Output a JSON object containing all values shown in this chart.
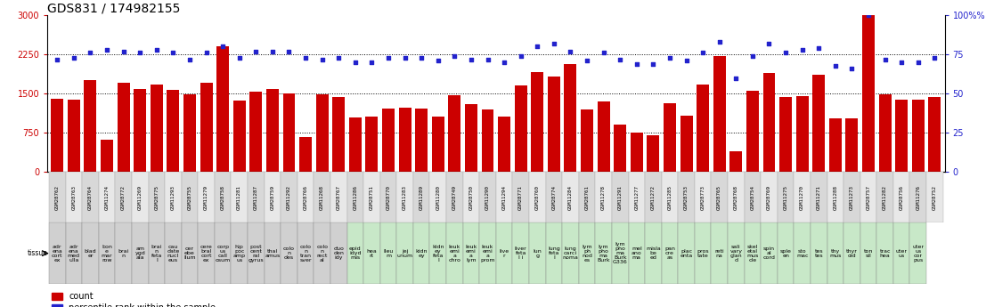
{
  "title": "GDS831 / 174982155",
  "gsm_labels": [
    "GSM28762",
    "GSM28763",
    "GSM28764",
    "GSM11274",
    "GSM28772",
    "GSM11269",
    "GSM28775",
    "GSM11293",
    "GSM28755",
    "GSM11279",
    "GSM28758",
    "GSM11281",
    "GSM11287",
    "GSM28759",
    "GSM11292",
    "GSM28766",
    "GSM11268",
    "GSM28767",
    "GSM11286",
    "GSM28751",
    "GSM28770",
    "GSM11283",
    "GSM11289",
    "GSM11280",
    "GSM28749",
    "GSM28750",
    "GSM11290",
    "GSM11294",
    "GSM28771",
    "GSM28760",
    "GSM28774",
    "GSM11284",
    "GSM28761",
    "GSM11278",
    "GSM11291",
    "GSM11277",
    "GSM11272",
    "GSM11285",
    "GSM28753",
    "GSM28773",
    "GSM28765",
    "GSM28768",
    "GSM28754",
    "GSM28769",
    "GSM11275",
    "GSM11270",
    "GSM11271",
    "GSM11288",
    "GSM11273",
    "GSM28757",
    "GSM11282",
    "GSM28756",
    "GSM11276",
    "GSM28752"
  ],
  "tissue_labels": [
    "adr\nena\ncort\nex",
    "adr\nena\nmed\nulla",
    "blad\ner",
    "bon\ne\nmar\nrow",
    "brai\nn",
    "am\nygd\nala",
    "brai\nn\nfeta\nl",
    "cau\ndate\nnucl\neus",
    "cer\nebe\nllum",
    "cere\nbral\ncort\nex",
    "corp\nus\ncall\nosum",
    "hip\npoc\namp\nus",
    "post\ncent\nral\ngyrus",
    "thal\namus",
    "colo\nn\ndes",
    "colo\nn\ntran\nsver",
    "colo\nn\nrect\nal",
    "duo\nden\nidy",
    "epid\nidyd\nmis",
    "hea\nrt",
    "lleu\nm",
    "jej\nunum",
    "kidn\ney",
    "kidn\ney\nfeta\nl",
    "leuk\nemi\na\nchro",
    "leuk\nemi\na\nlym",
    "leuk\nemi\na\nprom",
    "live\nr",
    "liver\nfeta\nl i",
    "lun\ng",
    "lung\nfeta\nl",
    "lung\ncarci\nnoma",
    "lym\nph\nnod\nes",
    "lym\npho\nma\nBurk",
    "lym\npho\nma\nBurk\nG336",
    "mel\nano\nma",
    "misla\nbe\ned",
    "pan\ncre\nas",
    "plac\nenta",
    "pros\ntate",
    "reti\nna",
    "sali\nvary\nglan\nd",
    "skel\netal\nmus\ncle",
    "spin\nal\ncord",
    "sple\nen",
    "sto\nmac",
    "tes\ntes",
    "thy\nmus",
    "thyr\noid",
    "ton\nsil",
    "trac\nhea",
    "uter\nus",
    "uter\nus\ncor\npus"
  ],
  "tissue_box_colors": [
    "#d0d0d0",
    "#d0d0d0",
    "#d0d0d0",
    "#d0d0d0",
    "#d0d0d0",
    "#d0d0d0",
    "#d0d0d0",
    "#d0d0d0",
    "#d0d0d0",
    "#d0d0d0",
    "#d0d0d0",
    "#d0d0d0",
    "#d0d0d0",
    "#d0d0d0",
    "#d0d0d0",
    "#d0d0d0",
    "#d0d0d0",
    "#d0d0d0",
    "#c8e8c8",
    "#c8e8c8",
    "#c8e8c8",
    "#c8e8c8",
    "#c8e8c8",
    "#c8e8c8",
    "#c8e8c8",
    "#c8e8c8",
    "#c8e8c8",
    "#c8e8c8",
    "#c8e8c8",
    "#c8e8c8",
    "#c8e8c8",
    "#c8e8c8",
    "#c8e8c8",
    "#c8e8c8",
    "#c8e8c8",
    "#c8e8c8",
    "#c8e8c8",
    "#c8e8c8",
    "#c8e8c8",
    "#c8e8c8",
    "#c8e8c8",
    "#c8e8c8",
    "#c8e8c8",
    "#c8e8c8",
    "#c8e8c8",
    "#c8e8c8",
    "#c8e8c8",
    "#c8e8c8",
    "#c8e8c8",
    "#c8e8c8",
    "#c8e8c8",
    "#c8e8c8",
    "#c8e8c8"
  ],
  "counts": [
    1400,
    1390,
    1760,
    620,
    1700,
    1590,
    1680,
    1570,
    1490,
    1700,
    2400,
    1370,
    1540,
    1590,
    1510,
    660,
    1490,
    1440,
    1050,
    1060,
    1220,
    1230,
    1210,
    1060,
    1470,
    1300,
    1200,
    1060,
    1650,
    1920,
    1820,
    2070,
    1190,
    1350,
    900,
    750,
    700,
    1320,
    1080,
    1680,
    2220,
    390,
    1560,
    1890,
    1430,
    1460,
    1870,
    1030,
    1020,
    3000,
    1480,
    1380,
    1380,
    1430
  ],
  "percentile_ranks": [
    72,
    73,
    76,
    78,
    77,
    76,
    78,
    76,
    72,
    76,
    80,
    73,
    77,
    77,
    77,
    73,
    72,
    73,
    70,
    70,
    73,
    73,
    73,
    71,
    74,
    72,
    72,
    70,
    74,
    80,
    82,
    77,
    71,
    76,
    72,
    69,
    69,
    73,
    71,
    76,
    83,
    60,
    74,
    82,
    76,
    78,
    79,
    68,
    66,
    100,
    72,
    70,
    70,
    73
  ],
  "ylim_left": [
    0,
    3000
  ],
  "ylim_right": [
    0,
    100
  ],
  "yticks_left": [
    0,
    750,
    1500,
    2250,
    3000
  ],
  "yticks_right": [
    0,
    25,
    50,
    75,
    100
  ],
  "bar_color": "#cc0000",
  "scatter_color": "#2222cc",
  "bg_color": "#ffffff",
  "title_fontsize": 10,
  "axis_label_fontsize": 7,
  "gsm_fontsize": 4.2,
  "tissue_fontsize": 4.5,
  "legend_fontsize": 7
}
